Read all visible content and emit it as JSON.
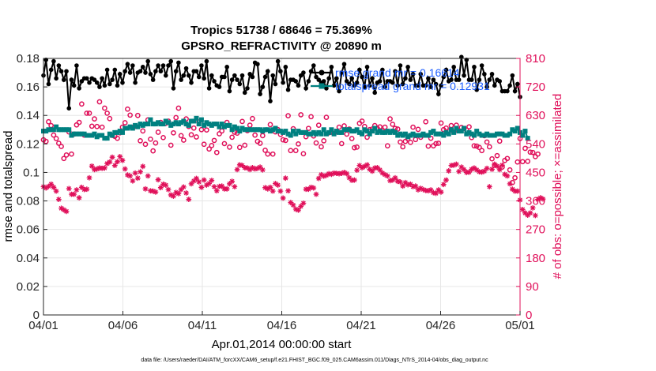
{
  "chart_data": {
    "type": "line",
    "title": "Tropics 51738 / 68646 = 75.369%",
    "subtitle": "GPSRO_REFRACTIVITY @ 20890 m",
    "xlabel": "Apr.01,2014 00:00:00 start",
    "ylabel_left": "rmse and totalspread",
    "ylabel_right": "# of obs: o=possible; ×=assimilated",
    "footnote": "data file: /Users/raeder/DAI/ATM_forcXX/CAM6_setup/f.e21.FHIST_BGC.f09_025.CAM6assim.011/Diags_NTrS_2014-04/obs_diag_output.nc",
    "x_tick_labels": [
      "04/01",
      "04/06",
      "04/11",
      "04/16",
      "04/21",
      "04/26",
      "05/01"
    ],
    "x_tick_days": [
      0,
      5,
      10,
      15,
      20,
      25,
      30
    ],
    "xlim_days": [
      0,
      30
    ],
    "ylim_left": [
      0,
      0.18
    ],
    "yticks_left": [
      "0",
      "0.02",
      "0.04",
      "0.06",
      "0.08",
      "0.1",
      "0.12",
      "0.14",
      "0.16",
      "0.18"
    ],
    "ylim_right": [
      0,
      810
    ],
    "yticks_right": [
      "0",
      "90",
      "180",
      "270",
      "360",
      "450",
      "540",
      "630",
      "720",
      "810"
    ],
    "grid": true,
    "legend_location": "top-right",
    "series": [
      {
        "name": "rmse",
        "legend_label": "rmse grand mr = 0.16614",
        "axis": "left",
        "color": "#000000",
        "marker": "filled-circle",
        "values": [
          0.168,
          0.179,
          0.162,
          0.172,
          0.178,
          0.166,
          0.175,
          0.171,
          0.165,
          0.171,
          0.145,
          0.165,
          0.161,
          0.175,
          0.159,
          0.164,
          0.166,
          0.166,
          0.163,
          0.166,
          0.165,
          0.163,
          0.16,
          0.166,
          0.161,
          0.172,
          0.162,
          0.165,
          0.172,
          0.161,
          0.169,
          0.163,
          0.171,
          0.176,
          0.17,
          0.175,
          0.163,
          0.17,
          0.171,
          0.174,
          0.17,
          0.178,
          0.169,
          0.165,
          0.171,
          0.175,
          0.171,
          0.175,
          0.168,
          0.175,
          0.178,
          0.159,
          0.171,
          0.177,
          0.165,
          0.168,
          0.173,
          0.168,
          0.163,
          0.171,
          0.171,
          0.167,
          0.175,
          0.166,
          0.178,
          0.159,
          0.168,
          0.164,
          0.161,
          0.16,
          0.167,
          0.167,
          0.174,
          0.157,
          0.165,
          0.168,
          0.165,
          0.162,
          0.168,
          0.156,
          0.159,
          0.169,
          0.167,
          0.177,
          0.176,
          0.155,
          0.16,
          0.167,
          0.171,
          0.15,
          0.168,
          0.162,
          0.178,
          0.171,
          0.163,
          0.174,
          0.158,
          0.165,
          0.165,
          0.164,
          0.161,
          0.168,
          0.17,
          0.159,
          0.164,
          0.171,
          0.175,
          0.167,
          0.165,
          0.163,
          0.164,
          0.159,
          0.166,
          0.174,
          0.161,
          0.166,
          0.157,
          0.17,
          0.176,
          0.164,
          0.162,
          0.166,
          0.161,
          0.163,
          0.172,
          0.167,
          0.16,
          0.174,
          0.161,
          0.166,
          0.156,
          0.163,
          0.164,
          0.172,
          0.16,
          0.164,
          0.164,
          0.163,
          0.171,
          0.161,
          0.175,
          0.162,
          0.166,
          0.174,
          0.165,
          0.169,
          0.161,
          0.161,
          0.169,
          0.161,
          0.161,
          0.166,
          0.16,
          0.165,
          0.162,
          0.155,
          0.161,
          0.167,
          0.172,
          0.164,
          0.165,
          0.174,
          0.165,
          0.165,
          0.181,
          0.168,
          0.179,
          0.165,
          0.165,
          0.174,
          0.158,
          0.165,
          0.175,
          0.169,
          0.16,
          0.165,
          0.169,
          0.161,
          0.165,
          0.164,
          0.157,
          0.157,
          0.157,
          0.161,
          0.168,
          0.157,
          0.162,
          0.153
        ]
      },
      {
        "name": "totalspread",
        "legend_label": "totalspread grand mr = 0.12931",
        "axis": "left",
        "color": "#008080",
        "marker": "filled-square",
        "values": [
          0.129,
          0.129,
          0.13,
          0.13,
          0.13,
          0.132,
          0.13,
          0.13,
          0.13,
          0.13,
          0.13,
          0.126,
          0.127,
          0.127,
          0.127,
          0.127,
          0.127,
          0.126,
          0.126,
          0.126,
          0.127,
          0.125,
          0.126,
          0.126,
          0.124,
          0.124,
          0.127,
          0.126,
          0.128,
          0.128,
          0.129,
          0.128,
          0.131,
          0.131,
          0.132,
          0.131,
          0.133,
          0.132,
          0.134,
          0.133,
          0.134,
          0.134,
          0.137,
          0.134,
          0.134,
          0.135,
          0.134,
          0.134,
          0.136,
          0.135,
          0.133,
          0.134,
          0.135,
          0.134,
          0.135,
          0.136,
          0.134,
          0.133,
          0.136,
          0.136,
          0.138,
          0.134,
          0.137,
          0.133,
          0.135,
          0.134,
          0.133,
          0.134,
          0.134,
          0.132,
          0.134,
          0.132,
          0.133,
          0.133,
          0.13,
          0.132,
          0.131,
          0.129,
          0.131,
          0.13,
          0.13,
          0.13,
          0.13,
          0.13,
          0.13,
          0.13,
          0.129,
          0.13,
          0.13,
          0.129,
          0.13,
          0.131,
          0.129,
          0.129,
          0.128,
          0.129,
          0.127,
          0.126,
          0.129,
          0.127,
          0.129,
          0.128,
          0.128,
          0.128,
          0.127,
          0.127,
          0.128,
          0.127,
          0.128,
          0.127,
          0.13,
          0.127,
          0.128,
          0.13,
          0.127,
          0.129,
          0.128,
          0.128,
          0.13,
          0.13,
          0.13,
          0.129,
          0.129,
          0.13,
          0.128,
          0.127,
          0.13,
          0.129,
          0.127,
          0.129,
          0.131,
          0.128,
          0.129,
          0.128,
          0.128,
          0.129,
          0.128,
          0.129,
          0.128,
          0.126,
          0.127,
          0.126,
          0.127,
          0.125,
          0.126,
          0.127,
          0.126,
          0.126,
          0.126,
          0.127,
          0.126,
          0.126,
          0.128,
          0.129,
          0.127,
          0.127,
          0.127,
          0.126,
          0.128,
          0.127,
          0.13,
          0.128,
          0.131,
          0.129,
          0.129,
          0.131,
          0.127,
          0.128,
          0.127,
          0.126,
          0.129,
          0.127,
          0.126,
          0.126,
          0.127,
          0.126,
          0.126,
          0.126,
          0.127,
          0.127,
          0.127,
          0.126,
          0.126,
          0.127,
          0.13,
          0.129,
          0.131,
          0.128,
          0.126,
          0.129,
          0.124
        ]
      },
      {
        "name": "obs possible",
        "axis": "right",
        "color": "#e0105a",
        "marker": "open-circle",
        "values": [
          553,
          548,
          610,
          598,
          568,
          557,
          542,
          532,
          494,
          505,
          578,
          508,
          571,
          600,
          608,
          666,
          568,
          637,
          637,
          596,
          619,
          595,
          673,
          593,
          653,
          637,
          620,
          567,
          564,
          558,
          575,
          593,
          607,
          650,
          631,
          592,
          596,
          630,
          550,
          581,
          539,
          616,
          555,
          518,
          543,
          577,
          608,
          560,
          605,
          612,
          536,
          575,
          623,
          653,
          566,
          552,
          619,
          595,
          569,
          590,
          562,
          609,
          585,
          539,
          584,
          524,
          535,
          551,
          513,
          572,
          581,
          541,
          608,
          530,
          561,
          577,
          574,
          529,
          611,
          536,
          582,
          599,
          620,
          568,
          548,
          542,
          566,
          520,
          508,
          601,
          508,
          578,
          585,
          570,
          553,
          551,
          629,
          519,
          588,
          519,
          540,
          632,
          509,
          563,
          589,
          626,
          565,
          543,
          599,
          531,
          550,
          624,
          575,
          577,
          573,
          578,
          593,
          541,
          597,
          571,
          587,
          557,
          528,
          530,
          605,
          612,
          595,
          561,
          585,
          587,
          598,
          589,
          594,
          581,
          593,
          534,
          619,
          602,
          589,
          587,
          546,
          531,
          548,
          556,
          545,
          593,
          554,
          586,
          561,
          568,
          610,
          533,
          558,
          534,
          541,
          542,
          606,
          585,
          590,
          580,
          598,
          578,
          599,
          582,
          592,
          589,
          584,
          594,
          560,
          534,
          533,
          529,
          519,
          566,
          546,
          531,
          493,
          473,
          503,
          549,
          467,
          488,
          494,
          458,
          418,
          433,
          483,
          557,
          484,
          526,
          485,
          514,
          513,
          500,
          508
        ]
      },
      {
        "name": "obs assimilated",
        "axis": "right",
        "color": "#e0105a",
        "marker": "asterisk",
        "values": [
          405,
          401,
          406,
          413,
          403,
          391,
          365,
          337,
          332,
          327,
          399,
          381,
          381,
          395,
          370,
          403,
          396,
          397,
          433,
          470,
          459,
          461,
          464,
          463,
          464,
          478,
          483,
          498,
          472,
          484,
          500,
          488,
          461,
          442,
          439,
          423,
          448,
          432,
          452,
          469,
          398,
          439,
          392,
          391,
          388,
          427,
          402,
          413,
          410,
          396,
          379,
          375,
          387,
          383,
          396,
          404,
          385,
          365,
          414,
          423,
          431,
          420,
          403,
          426,
          410,
          415,
          425,
          405,
          392,
          406,
          407,
          398,
          398,
          414,
          422,
          405,
          459,
          474,
          472,
          465,
          464,
          459,
          465,
          461,
          463,
          467,
          458,
          402,
          398,
          403,
          391,
          415,
          410,
          391,
          369,
          432,
          392,
          355,
          347,
          334,
          331,
          343,
          353,
          397,
          397,
          403,
          401,
          381,
          431,
          443,
          438,
          441,
          446,
          444,
          448,
          447,
          446,
          447,
          450,
          446,
          433,
          425,
          426,
          457,
          472,
          465,
          469,
          474,
          460,
          454,
          464,
          465,
          458,
          448,
          443,
          439,
          424,
          426,
          433,
          422,
          420,
          407,
          418,
          411,
          413,
          405,
          407,
          395,
          400,
          396,
          393,
          392,
          395,
          386,
          384,
          395,
          388,
          412,
          426,
          455,
          472,
          473,
          476,
          453,
          467,
          459,
          450,
          451,
          460,
          464,
          458,
          452,
          451,
          454,
          463,
          405,
          460,
          476,
          470,
          459,
          473,
          444,
          439,
          414,
          397,
          391,
          391,
          363,
          333,
          322,
          315,
          322,
          338,
          314,
          365,
          370,
          366
        ]
      }
    ]
  }
}
